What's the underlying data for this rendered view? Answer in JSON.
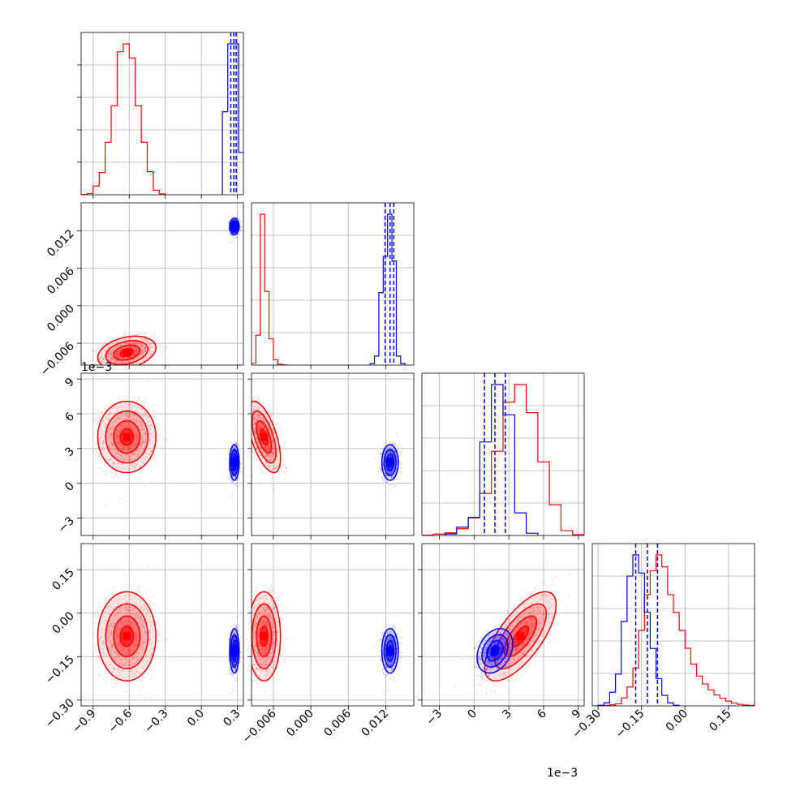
{
  "chart_data": {
    "type": "corner",
    "params": [
      {
        "ticks": [
          -0.9,
          -0.6,
          -0.3,
          0.0,
          0.3
        ],
        "tick_labels": [
          "−0.9",
          "−0.6",
          "−0.3",
          "0.0",
          "0.3"
        ],
        "range": [
          -1.0,
          0.35
        ]
      },
      {
        "ticks": [
          -0.006,
          0.0,
          0.006,
          0.012
        ],
        "tick_labels": [
          "−0.006",
          "0.000",
          "0.006",
          "0.012"
        ],
        "range": [
          -0.0095,
          0.0165
        ]
      },
      {
        "ticks": [
          -3,
          0,
          3,
          6,
          9
        ],
        "tick_labels": [
          "−3",
          "0",
          "3",
          "6",
          "9"
        ],
        "range": [
          -4.5,
          9.5
        ]
      },
      {
        "ticks": [
          -0.3,
          -0.15,
          0.0,
          0.15
        ],
        "tick_labels": [
          "−0.30",
          "−0.15",
          "0.00",
          "0.15"
        ],
        "range": [
          -0.32,
          0.24
        ]
      }
    ],
    "offset_labels": {
      "p2_y": "1e−3",
      "p2_x": "1e−3"
    },
    "series": [
      {
        "name": "",
        "color": "#ff0000",
        "means": [
          -0.62,
          -0.0075,
          4.0,
          -0.08
        ],
        "sds": [
          0.11,
          0.0012,
          1.4,
          0.07
        ],
        "corr": {
          "0-1": 0.3,
          "0-2": 0.0,
          "0-3": 0.0,
          "1-2": -0.6,
          "1-3": 0.0,
          "2-3": 0.7
        },
        "hist": [
          {
            "edges": [
              -1.0,
              -0.95,
              -0.9,
              -0.85,
              -0.8,
              -0.75,
              -0.7,
              -0.65,
              -0.6,
              -0.55,
              -0.5,
              -0.45,
              -0.4,
              -0.35,
              -0.3
            ],
            "counts": [
              2,
              8,
              55,
              140,
              330,
              560,
              900,
              950,
              860,
              560,
              330,
              145,
              28,
              5
            ]
          },
          {
            "edges": [
              -0.0095,
              -0.0088,
              -0.0081,
              -0.0074,
              -0.0067,
              -0.006,
              -0.0053,
              -0.0046,
              -0.0039
            ],
            "counts": [
              10,
              170,
              860,
              420,
              150,
              30,
              5,
              1
            ]
          },
          {
            "edges": [
              -4.5,
              -3.5,
              -2.5,
              -1.5,
              -0.5,
              0.5,
              1.5,
              2.5,
              3.5,
              4.5,
              5.5,
              6.5,
              7.5,
              8.5,
              9.5
            ],
            "counts": [
              2,
              8,
              15,
              38,
              100,
              240,
              480,
              760,
              860,
              700,
              420,
              175,
              28,
              5
            ]
          },
          {
            "edges": [
              -0.32,
              -0.3,
              -0.28,
              -0.26,
              -0.24,
              -0.22,
              -0.2,
              -0.18,
              -0.16,
              -0.14,
              -0.12,
              -0.1,
              -0.08,
              -0.06,
              -0.04,
              -0.02,
              0.0,
              0.02,
              0.04,
              0.06,
              0.08,
              0.1,
              0.12,
              0.14,
              0.16,
              0.18,
              0.2,
              0.22,
              0.24
            ],
            "counts": [
              0,
              0,
              2,
              5,
              10,
              40,
              95,
              190,
              380,
              560,
              680,
              760,
              700,
              560,
              470,
              380,
              290,
              210,
              150,
              110,
              80,
              55,
              38,
              24,
              14,
              8,
              4,
              2
            ]
          }
        ]
      },
      {
        "name": "",
        "color": "#0000ff",
        "means": [
          0.275,
          0.0127,
          1.8,
          -0.13
        ],
        "sds": [
          0.018,
          0.0006,
          0.7,
          0.035
        ],
        "corr": {
          "0-1": 0.0,
          "0-2": 0.0,
          "0-3": 0.0,
          "1-2": 0.0,
          "1-3": 0.0,
          "2-3": 0.3
        },
        "hist": [
          {
            "edges": [
              0.175,
              0.22,
              0.265,
              0.31,
              0.355
            ],
            "counts": [
              550,
              1000,
              1000,
              280
            ]
          },
          {
            "edges": [
              0.0095,
              0.0102,
              0.0109,
              0.0116,
              0.0123,
              0.013,
              0.0137,
              0.0144,
              0.0151
            ],
            "counts": [
              10,
              60,
              480,
              720,
              1000,
              690,
              60,
              10
            ]
          },
          {
            "edges": [
              -2.5,
              -1.5,
              -0.5,
              0.5,
              1.5,
              2.5,
              3.5,
              4.5,
              5.5
            ],
            "counts": [
              10,
              55,
              120,
              620,
              1000,
              800,
              150,
              15
            ]
          },
          {
            "edges": [
              -0.3,
              -0.28,
              -0.26,
              -0.24,
              -0.22,
              -0.2,
              -0.18,
              -0.16,
              -0.14,
              -0.12,
              -0.1,
              -0.08,
              -0.06,
              -0.04,
              -0.02
            ],
            "counts": [
              4,
              20,
              90,
              210,
              560,
              860,
              1000,
              880,
              620,
              380,
              180,
              70,
              20,
              4
            ]
          }
        ],
        "quantiles": [
          [
            0.245,
            0.27,
            0.29
          ],
          [
            0.0119,
            0.0127,
            0.0133
          ],
          [
            0.9,
            1.8,
            2.7
          ],
          [
            -0.17,
            -0.13,
            -0.095
          ]
        ]
      }
    ],
    "grid": true
  }
}
